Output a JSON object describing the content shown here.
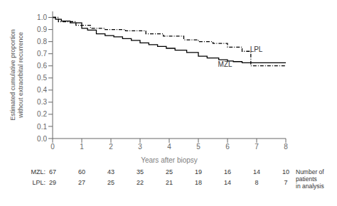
{
  "chart_data": {
    "type": "line",
    "xlabel": "Years after biopsy",
    "ylabel": "Estimated cumulative proportion\nwithout extraorbital recurrence",
    "xlim": [
      0,
      8
    ],
    "ylim": [
      0.0,
      1.05
    ],
    "xticks": [
      0,
      1,
      2,
      3,
      4,
      5,
      6,
      7,
      8
    ],
    "yticks": [
      {
        "value": 0.0,
        "label": "0.0"
      },
      0.1,
      0.2,
      0.3,
      0.4,
      0.5,
      0.6,
      0.7,
      0.8,
      0.9,
      {
        "value": 1.0,
        "label": "1.0"
      }
    ],
    "series": [
      {
        "name": "MZL",
        "color": "#000000",
        "line_style": "solid",
        "x": [
          0,
          0.1,
          0.3,
          0.6,
          1.0,
          1.2,
          1.5,
          1.8,
          2.1,
          2.4,
          2.7,
          3.0,
          3.3,
          3.6,
          3.9,
          4.2,
          4.6,
          5.0,
          5.3,
          5.7,
          6.0,
          6.2,
          6.5,
          8.0
        ],
        "values": [
          1.0,
          0.985,
          0.97,
          0.955,
          0.91,
          0.895,
          0.865,
          0.85,
          0.84,
          0.825,
          0.81,
          0.79,
          0.775,
          0.76,
          0.745,
          0.73,
          0.71,
          0.68,
          0.665,
          0.65,
          0.64,
          0.635,
          0.625,
          0.625
        ]
      },
      {
        "name": "LPL",
        "color": "#000000",
        "line_style": "dashdot",
        "x": [
          0,
          0.2,
          0.8,
          1.3,
          1.8,
          2.5,
          3.2,
          3.8,
          4.5,
          5.0,
          5.5,
          6.0,
          6.5,
          6.8,
          8.0
        ],
        "values": [
          1.0,
          0.965,
          0.935,
          0.91,
          0.9,
          0.89,
          0.865,
          0.845,
          0.815,
          0.8,
          0.785,
          0.755,
          0.72,
          0.6,
          0.6
        ]
      }
    ],
    "annotations": [
      {
        "text": "LPL",
        "x": 6.65,
        "y": 0.735
      },
      {
        "text": "MZL",
        "x": 5.55,
        "y": 0.615
      }
    ],
    "table": {
      "x": [
        0,
        1,
        2,
        3,
        4,
        5,
        6,
        7,
        8
      ],
      "rows": [
        {
          "label": "MZL:",
          "values": [
            67,
            60,
            43,
            35,
            25,
            19,
            16,
            14,
            10
          ]
        },
        {
          "label": "LPL:",
          "values": [
            29,
            27,
            25,
            22,
            21,
            18,
            14,
            8,
            7
          ]
        }
      ],
      "label": "Number of\npatients\nin analysis"
    }
  }
}
